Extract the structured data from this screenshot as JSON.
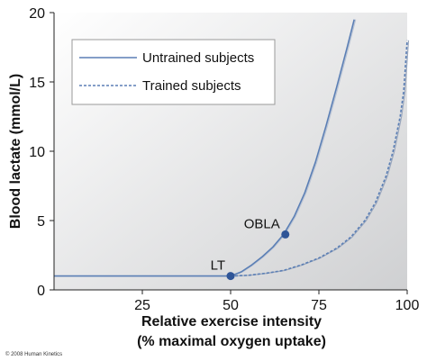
{
  "chart_data": {
    "type": "line",
    "title": "",
    "xlabel_line1": "Relative exercise intensity",
    "xlabel_line2": "(% maximal oxygen uptake)",
    "ylabel": "Blood lactate (mmol/L)",
    "xlim": [
      0,
      100
    ],
    "ylim": [
      0,
      20
    ],
    "xticks": [
      25,
      50,
      75,
      100
    ],
    "yticks": [
      0,
      5,
      10,
      15,
      20
    ],
    "grid": false,
    "legend_position": "top-left",
    "background_gradient": [
      "#ffffff",
      "#cfd0d2"
    ],
    "series": [
      {
        "name": "Untrained subjects",
        "style": "solid",
        "color": "#5b7fb5",
        "x": [
          0,
          10,
          20,
          30,
          40,
          50,
          53,
          56,
          59,
          62,
          65,
          68,
          71,
          74,
          77,
          80,
          83,
          85
        ],
        "y": [
          1.0,
          1.0,
          1.0,
          1.0,
          1.0,
          1.0,
          1.3,
          1.8,
          2.4,
          3.1,
          4.0,
          5.3,
          7.0,
          9.2,
          11.8,
          14.6,
          17.5,
          19.5
        ]
      },
      {
        "name": "Trained subjects",
        "style": "dashed",
        "color": "#5b7fb5",
        "x": [
          50,
          55,
          60,
          65,
          70,
          75,
          80,
          84,
          88,
          91,
          94,
          96,
          98,
          99,
          100
        ],
        "y": [
          1.0,
          1.05,
          1.2,
          1.4,
          1.8,
          2.3,
          3.0,
          3.8,
          5.0,
          6.3,
          8.2,
          10.0,
          12.5,
          14.3,
          18.0
        ]
      }
    ],
    "annotations": [
      {
        "label": "LT",
        "x": 50,
        "y": 1.0
      },
      {
        "label": "OBLA",
        "x": 65.5,
        "y": 4.0
      }
    ]
  },
  "copyright": "© 2008 Human Kinetics"
}
